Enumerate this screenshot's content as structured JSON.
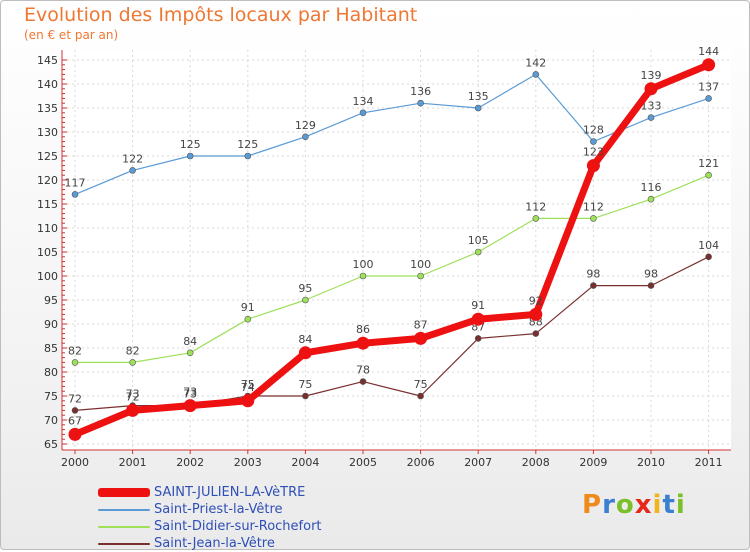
{
  "chart_data": {
    "type": "line",
    "title": "Evolution des Impôts locaux par Habitant",
    "subtitle": "(en € et par an)",
    "categories": [
      "2000",
      "2001",
      "2002",
      "2003",
      "2004",
      "2005",
      "2006",
      "2007",
      "2008",
      "2009",
      "2010",
      "2011"
    ],
    "ylim": [
      65,
      145
    ],
    "yticks": [
      65,
      70,
      75,
      80,
      85,
      90,
      95,
      100,
      105,
      110,
      115,
      120,
      125,
      130,
      135,
      140,
      145
    ],
    "grid": true,
    "series": [
      {
        "name": "Saint-Priest-la-Vêtre",
        "color": "#5b9bd5",
        "width": 1.2,
        "marker": 3,
        "values": [
          117,
          122,
          125,
          125,
          129,
          134,
          136,
          135,
          142,
          128,
          133,
          137
        ]
      },
      {
        "name": "Saint-Didier-sur-Rochefort",
        "color": "#9ee05a",
        "width": 1.2,
        "marker": 3,
        "values": [
          82,
          82,
          84,
          91,
          95,
          100,
          100,
          105,
          112,
          112,
          116,
          121
        ]
      },
      {
        "name": "Saint-Jean-la-Vêtre",
        "color": "#7a2f2f",
        "width": 1.2,
        "marker": 3,
        "values": [
          72,
          73,
          73,
          75,
          75,
          78,
          75,
          87,
          88,
          98,
          98,
          104
        ]
      },
      {
        "name": "SAINT-JULIEN-LA-VèTRE",
        "color": "#ee1111",
        "width": 7,
        "marker": 6.5,
        "values": [
          67,
          72,
          73,
          74,
          84,
          86,
          87,
          91,
          92,
          123,
          139,
          144
        ]
      }
    ],
    "legend": [
      "SAINT-JULIEN-LA-VèTRE",
      "Saint-Priest-la-Vêtre",
      "Saint-Didier-sur-Rochefort",
      "Saint-Jean-la-Vêtre"
    ]
  },
  "logo": {
    "letters": [
      "P",
      "r",
      "o",
      "x",
      "i",
      "t",
      "i"
    ],
    "colors": [
      "#f08a1c",
      "#3b7fd0",
      "#7bbf2a",
      "#e8271b",
      "#f0b51c",
      "#3b7fd0",
      "#7bbf2a"
    ]
  }
}
